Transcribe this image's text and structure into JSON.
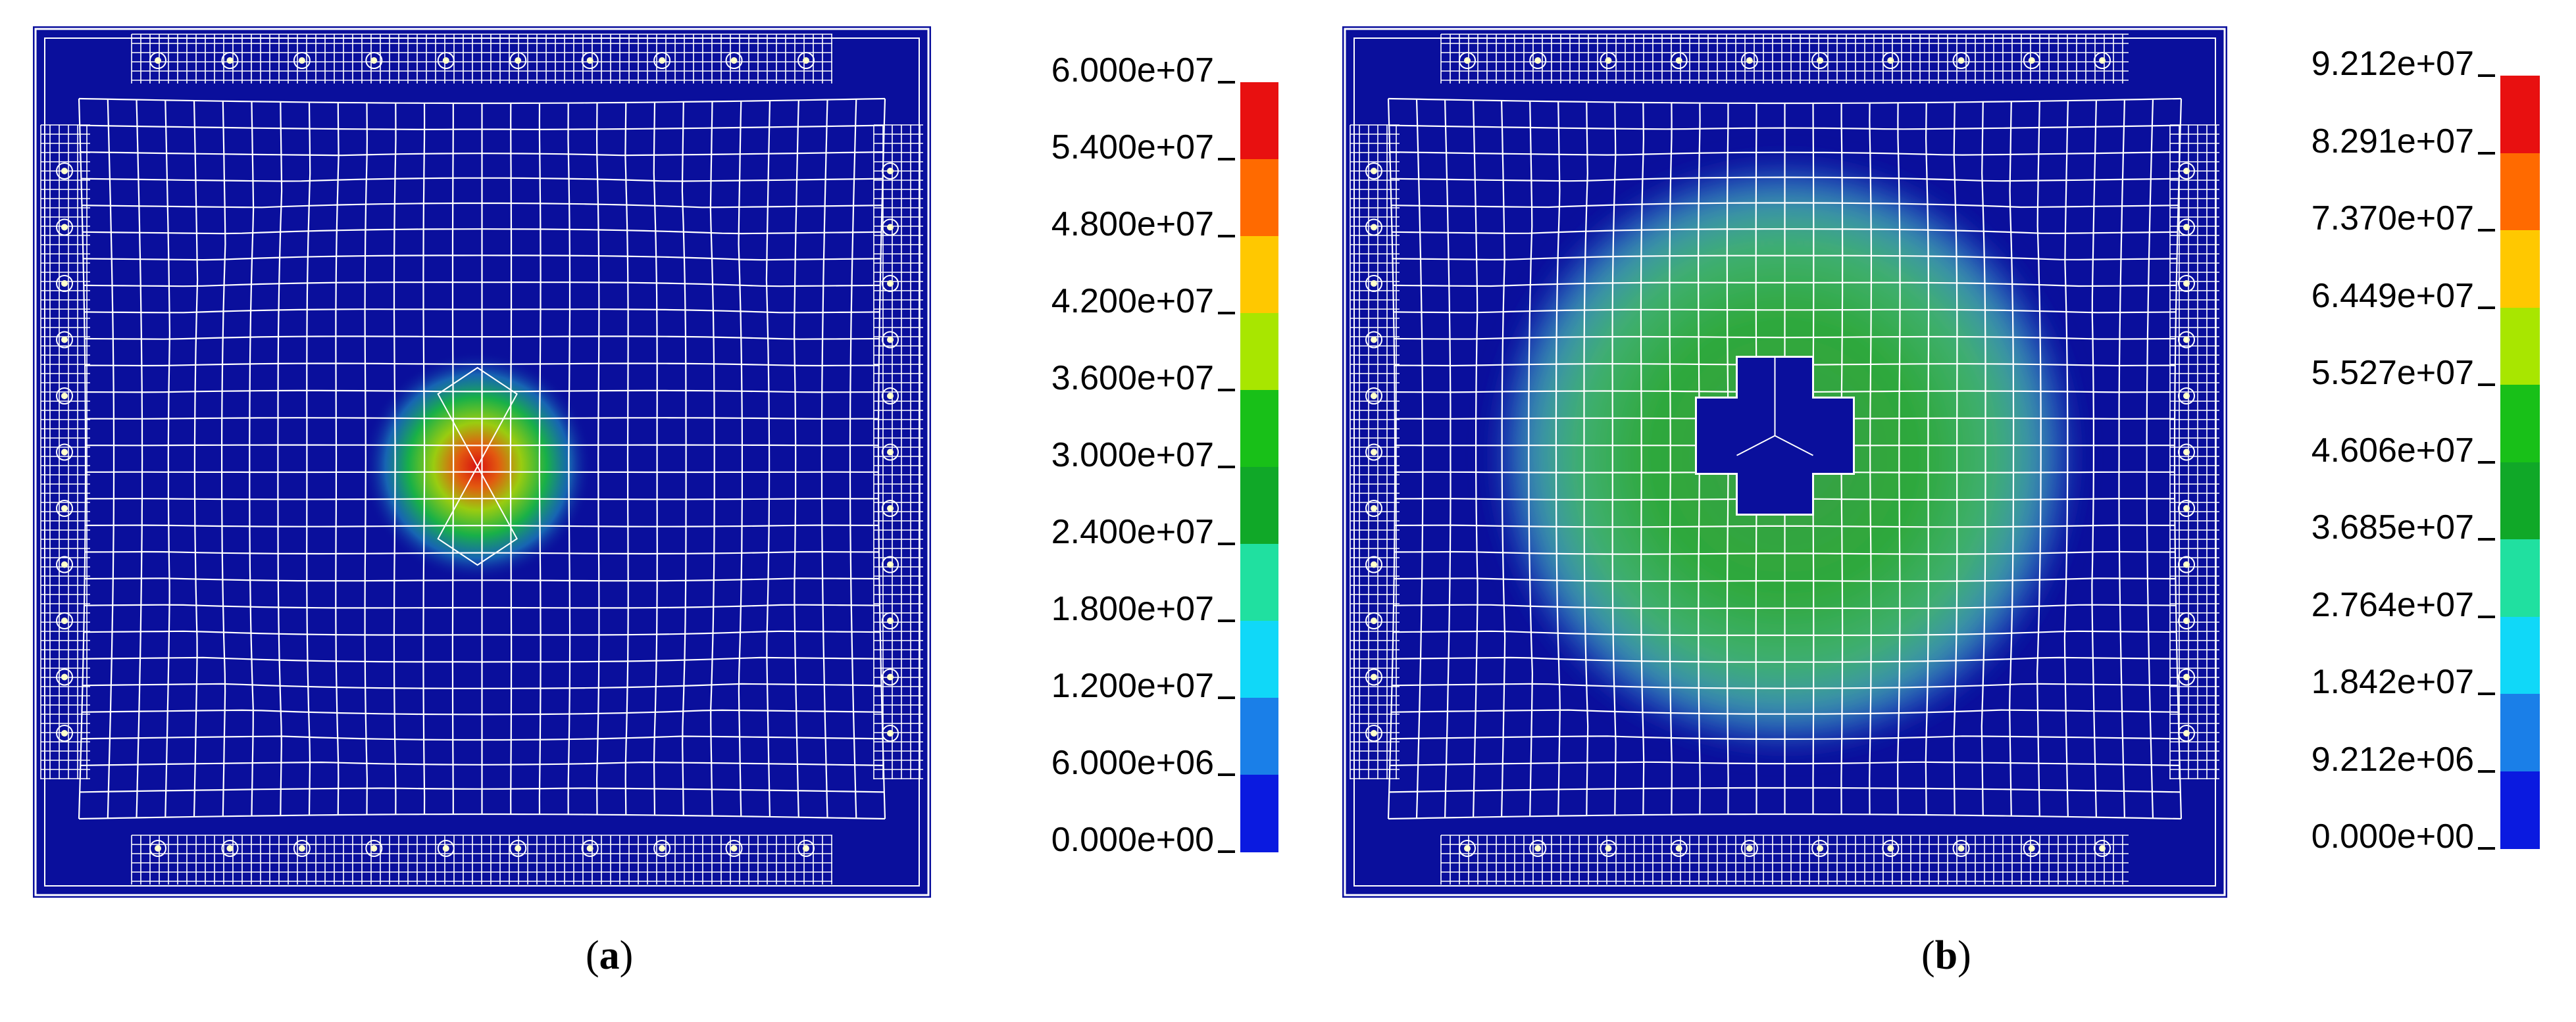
{
  "panels": [
    {
      "id": "a",
      "label_open": "(",
      "label_letter": "a",
      "label_close": ")",
      "legend": {
        "values": [
          "6.000e+07",
          "5.400e+07",
          "4.800e+07",
          "4.200e+07",
          "3.600e+07",
          "3.000e+07",
          "2.400e+07",
          "1.800e+07",
          "1.200e+07",
          "6.000e+06",
          "0.000e+00"
        ],
        "colors": [
          "#e81010",
          "#ff6a00",
          "#ffc800",
          "#a8e600",
          "#18c018",
          "#10a828",
          "#20e0a0",
          "#10d8f8",
          "#1a7fe8",
          "#0a1ae0"
        ]
      },
      "field": {
        "type": "point-concentration",
        "peak_value": 60000000.0,
        "feature": "none"
      }
    },
    {
      "id": "b",
      "label_open": "(",
      "label_letter": "b",
      "label_close": ")",
      "legend": {
        "values": [
          "9.212e+07",
          "8.291e+07",
          "7.370e+07",
          "6.449e+07",
          "5.527e+07",
          "4.606e+07",
          "3.685e+07",
          "2.764e+07",
          "1.842e+07",
          "9.212e+06",
          "0.000e+00"
        ],
        "colors": [
          "#e81010",
          "#ff6a00",
          "#ffc800",
          "#a8e600",
          "#18c018",
          "#10a828",
          "#20e0a0",
          "#10d8f8",
          "#1a7fe8",
          "#0a1ae0"
        ]
      },
      "field": {
        "type": "ring",
        "peak_value": 46060000.0,
        "feature": "cross-shaped cutout"
      }
    }
  ],
  "colors": {
    "background_field": "#0a0f9c",
    "mesh_line": "#ffffff",
    "bolt_dot": "#ffffcc"
  }
}
